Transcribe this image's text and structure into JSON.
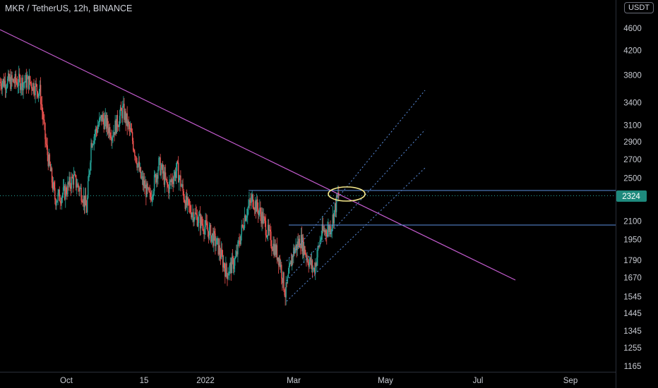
{
  "header": {
    "title": "MKR / TetherUS, 12h, BINANCE",
    "currency": "USDT"
  },
  "current_price_label": "2324",
  "colors": {
    "background": "#000000",
    "up": "#26a69a",
    "down": "#ef5350",
    "trendline": "#c45ccf",
    "hline": "#5b8fe0",
    "channel": "#5b8fe0",
    "highlight_ellipse": "#f3e68a",
    "price_tag": "#1e8a7d",
    "axis_text": "#c8cbd2"
  },
  "chart_data": {
    "type": "candlestick",
    "title": "MKR / TetherUS, 12h, BINANCE",
    "scale": "log",
    "grid": false,
    "y_ticks": [
      4600,
      4200,
      3800,
      3400,
      3100,
      2900,
      2700,
      2500,
      2300,
      2100,
      1950,
      1790,
      1670,
      1545,
      1445,
      1345,
      1255,
      1165
    ],
    "x_ticks": [
      "Oct",
      "15",
      "2022",
      "Mar",
      "May",
      "Jul",
      "Sep"
    ],
    "current_price": 2324,
    "approx_close_path": [
      {
        "date": "2021-09-07",
        "price": 3700
      },
      {
        "date": "2021-09-14",
        "price": 3550
      },
      {
        "date": "2021-09-18",
        "price": 2850
      },
      {
        "date": "2021-09-24",
        "price": 2300
      },
      {
        "date": "2021-09-30",
        "price": 2350
      },
      {
        "date": "2021-10-06",
        "price": 2500
      },
      {
        "date": "2021-10-12",
        "price": 2350
      },
      {
        "date": "2021-10-15",
        "price": 2200
      },
      {
        "date": "2021-10-18",
        "price": 2900
      },
      {
        "date": "2021-10-25",
        "price": 3200
      },
      {
        "date": "2021-11-01",
        "price": 3000
      },
      {
        "date": "2021-11-08",
        "price": 3300
      },
      {
        "date": "2021-11-14",
        "price": 2950
      },
      {
        "date": "2021-11-20",
        "price": 2500
      },
      {
        "date": "2021-11-26",
        "price": 2300
      },
      {
        "date": "2021-12-02",
        "price": 2650
      },
      {
        "date": "2021-12-08",
        "price": 2400
      },
      {
        "date": "2021-12-14",
        "price": 2600
      },
      {
        "date": "2021-12-20",
        "price": 2250
      },
      {
        "date": "2021-12-26",
        "price": 2150
      },
      {
        "date": "2022-01-05",
        "price": 2000
      },
      {
        "date": "2022-01-10",
        "price": 1900
      },
      {
        "date": "2022-01-16",
        "price": 1700
      },
      {
        "date": "2022-01-22",
        "price": 1800
      },
      {
        "date": "2022-01-28",
        "price": 2150
      },
      {
        "date": "2022-02-02",
        "price": 2300
      },
      {
        "date": "2022-02-08",
        "price": 2150
      },
      {
        "date": "2022-02-14",
        "price": 1950
      },
      {
        "date": "2022-02-20",
        "price": 1800
      },
      {
        "date": "2022-02-24",
        "price": 1560
      },
      {
        "date": "2022-03-01",
        "price": 1850
      },
      {
        "date": "2022-03-06",
        "price": 1950
      },
      {
        "date": "2022-03-11",
        "price": 1800
      },
      {
        "date": "2022-03-15",
        "price": 1720
      },
      {
        "date": "2022-03-20",
        "price": 2000
      },
      {
        "date": "2022-03-26",
        "price": 2050
      },
      {
        "date": "2022-03-31",
        "price": 2330
      }
    ],
    "drawings": {
      "descending_trendline": [
        {
          "date": "2021-08-23",
          "price": 4600
        },
        {
          "date": "2022-06-10",
          "price": 1650
        }
      ],
      "horizontal_levels": [
        2380,
        2060
      ],
      "ascending_channel": {
        "lower": [
          {
            "date": "2022-02-24",
            "price": 1550
          },
          {
            "date": "2022-05-18",
            "price": 2500
          }
        ],
        "upper": [
          {
            "date": "2022-02-24",
            "price": 2050
          },
          {
            "date": "2022-05-18",
            "price": 3550
          }
        ]
      },
      "highlight": {
        "date": "2022-04-04",
        "price": 2360
      }
    }
  }
}
